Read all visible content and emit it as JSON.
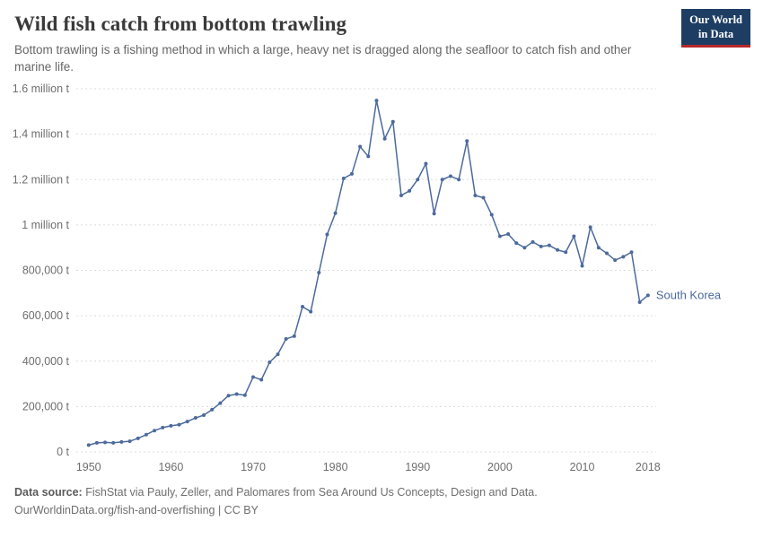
{
  "header": {
    "title": "Wild fish catch from bottom trawling",
    "subtitle": "Bottom trawling is a fishing method in which a large, heavy net is dragged along the seafloor to catch fish and other marine life.",
    "logo": {
      "line1": "Our World",
      "line2": "in Data"
    }
  },
  "chart_data": {
    "type": "line",
    "title": "Wild fish catch from bottom trawling",
    "unit": "tonnes",
    "x_range": [
      1948.5,
      2019
    ],
    "ylim": [
      0,
      1600000
    ],
    "yticks": [
      0,
      200000,
      400000,
      600000,
      800000,
      1000000,
      1200000,
      1400000,
      1600000
    ],
    "ytick_labels": [
      "0 t",
      "200,000 t",
      "400,000 t",
      "600,000 t",
      "800,000 t",
      "1 million t",
      "1.2 million t",
      "1.4 million t",
      "1.6 million t"
    ],
    "xticks": [
      1950,
      1960,
      1970,
      1980,
      1990,
      2000,
      2010,
      2018
    ],
    "grid": "horizontal-dashed",
    "legend_position": "end-of-line-label",
    "series": [
      {
        "name": "South Korea",
        "color": "#4C6A9C",
        "x": [
          1950,
          1951,
          1952,
          1953,
          1954,
          1955,
          1956,
          1957,
          1958,
          1959,
          1960,
          1961,
          1962,
          1963,
          1964,
          1965,
          1966,
          1967,
          1968,
          1969,
          1970,
          1971,
          1972,
          1973,
          1974,
          1975,
          1976,
          1977,
          1978,
          1979,
          1980,
          1981,
          1982,
          1983,
          1984,
          1985,
          1986,
          1987,
          1988,
          1989,
          1990,
          1991,
          1992,
          1993,
          1994,
          1995,
          1996,
          1997,
          1998,
          1999,
          2000,
          2001,
          2002,
          2003,
          2004,
          2005,
          2006,
          2007,
          2008,
          2009,
          2010,
          2011,
          2012,
          2013,
          2014,
          2015,
          2016,
          2017,
          2018
        ],
        "values": [
          30000,
          40000,
          42000,
          40000,
          44000,
          47000,
          60000,
          76000,
          94000,
          107000,
          115000,
          120000,
          134000,
          150000,
          162000,
          186000,
          215000,
          248000,
          255000,
          250000,
          330000,
          318000,
          395000,
          430000,
          498000,
          510000,
          640000,
          618000,
          790000,
          958000,
          1052000,
          1205000,
          1225000,
          1345000,
          1302000,
          1548000,
          1380000,
          1455000,
          1130000,
          1150000,
          1200000,
          1270000,
          1050000,
          1200000,
          1215000,
          1200000,
          1370000,
          1130000,
          1120000,
          1045000,
          950000,
          960000,
          920000,
          900000,
          925000,
          905000,
          910000,
          890000,
          880000,
          950000,
          820000,
          990000,
          900000,
          875000,
          845000,
          860000,
          880000,
          660000,
          690000
        ]
      }
    ]
  },
  "footer": {
    "source_label": "Data source:",
    "source_text": " FishStat via Pauly, Zeller, and Palomares from Sea Around Us Concepts, Design and Data.",
    "link_text": "OurWorldinData.org/fish-and-overfishing",
    "license_suffix": " | CC BY"
  },
  "colors": {
    "accent_line": "#4C6A9C",
    "logo_background": "#1d3d63",
    "logo_stripe": "#b5292a",
    "gridline": "#dcdcdc",
    "tick_label": "#6e6e6e"
  }
}
